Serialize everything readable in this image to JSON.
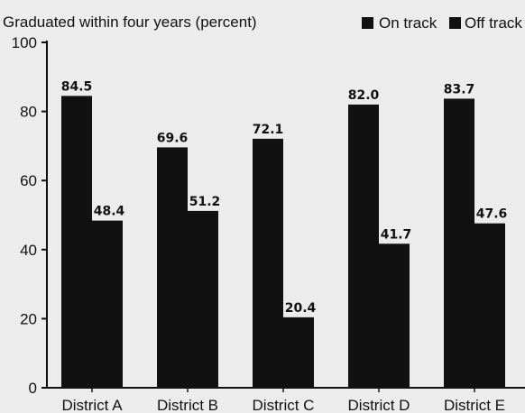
{
  "chart_data": {
    "type": "bar",
    "title": "Graduated within four years (percent)",
    "categories": [
      "District A",
      "District B",
      "District C",
      "District D",
      "District E"
    ],
    "series": [
      {
        "name": "On track",
        "values": [
          84.5,
          69.6,
          72.1,
          82.0,
          83.7
        ],
        "labels": [
          "84.5",
          "69.6",
          "72.1",
          "82.0",
          "83.7"
        ]
      },
      {
        "name": "Off track",
        "values": [
          48.4,
          51.2,
          20.4,
          41.7,
          47.6
        ],
        "labels": [
          "48.4",
          "51.2",
          "20.4",
          "41.7",
          "47.6"
        ]
      }
    ],
    "yticks": [
      "0",
      "20",
      "40",
      "60",
      "80",
      "100"
    ],
    "ylim": [
      0,
      100
    ],
    "legend": "top-right",
    "grid": false,
    "colors": {
      "on_track": "#111111",
      "off_track": "#111111",
      "background": "#ececec"
    }
  }
}
